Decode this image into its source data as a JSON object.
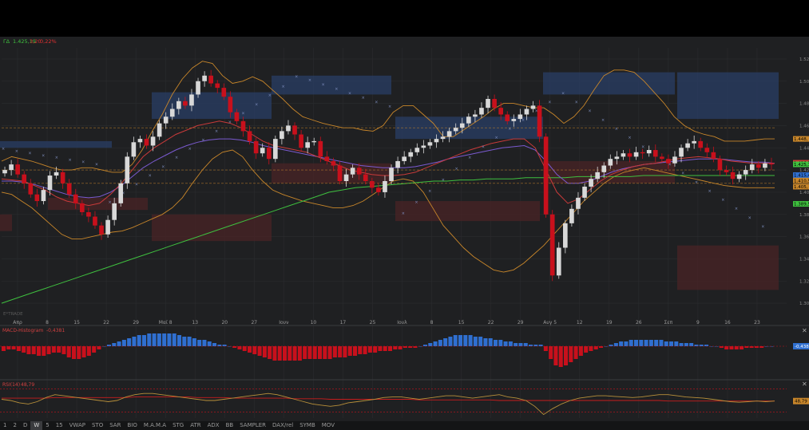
{
  "header": {
    "symbol": "ΓΔ",
    "last": "1.425,19",
    "change": "3,20",
    "change_pct": "0,22%"
  },
  "colors": {
    "background": "#1f2022",
    "up_candle": "#d8d8d8",
    "down_candle": "#c8101c",
    "bollinger": "#c8862a",
    "ema_fast": "#c83a3a",
    "ema_slow": "#7a5ad0",
    "sma_long": "#3fc03f",
    "sar": "#7d8dbd",
    "macd_pos": "#2f6fd0",
    "macd_neg": "#c8101c",
    "rsi": "#b8903a",
    "rsi_signal": "#c81c1c"
  },
  "chart_data": [
    {
      "type": "candlestick",
      "x_tick_labels": [
        "Απρ",
        "8",
        "15",
        "22",
        "29",
        "Μαϊ 8",
        "13",
        "20",
        "27",
        "Ιουν",
        "10",
        "17",
        "25",
        "Ιουλ",
        "8",
        "15",
        "22",
        "29",
        "Αυγ 5",
        "12",
        "19",
        "26",
        "Σεπ",
        "9",
        "16",
        "23"
      ],
      "y_tick_labels": [
        "1.520",
        "1.500",
        "1.480",
        "1.460",
        "1.440",
        "1.420",
        "1.400",
        "1.380",
        "1.360",
        "1.340",
        "1.320",
        "1.300"
      ],
      "ylim": [
        1290,
        1530
      ],
      "price_labels": [
        {
          "text": "1.448,",
          "value": 1448,
          "color": "#c8862a"
        },
        {
          "text": "1.426,5",
          "value": 1426.5,
          "color": "#c83a3a"
        },
        {
          "text": "1.425,1",
          "value": 1425.1,
          "color": "#3fc03f"
        },
        {
          "text": "1.415,4",
          "value": 1415.4,
          "color": "#2f6fd0"
        },
        {
          "text": "1.410,5",
          "value": 1410.5,
          "color": "#c8862a"
        },
        {
          "text": "1.405,",
          "value": 1405,
          "color": "#c8862a"
        },
        {
          "text": "1.389,5",
          "value": 1389.5,
          "color": "#3fc03f"
        }
      ],
      "close": [
        1420,
        1425,
        1416,
        1408,
        1398,
        1392,
        1402,
        1415,
        1418,
        1408,
        1398,
        1390,
        1382,
        1378,
        1370,
        1362,
        1375,
        1390,
        1408,
        1432,
        1445,
        1448,
        1442,
        1450,
        1462,
        1468,
        1475,
        1482,
        1478,
        1488,
        1500,
        1505,
        1498,
        1494,
        1486,
        1472,
        1464,
        1455,
        1446,
        1435,
        1440,
        1430,
        1448,
        1455,
        1460,
        1452,
        1440,
        1445,
        1446,
        1432,
        1428,
        1424,
        1410,
        1416,
        1422,
        1416,
        1410,
        1404,
        1400,
        1410,
        1422,
        1428,
        1432,
        1436,
        1440,
        1442,
        1445,
        1448,
        1450,
        1455,
        1458,
        1462,
        1468,
        1470,
        1476,
        1484,
        1476,
        1470,
        1464,
        1466,
        1470,
        1475,
        1478,
        1450,
        1380,
        1325,
        1350,
        1372,
        1385,
        1395,
        1405,
        1412,
        1418,
        1424,
        1430,
        1432,
        1435,
        1432,
        1436,
        1435,
        1438,
        1432,
        1430,
        1426,
        1432,
        1440,
        1444,
        1446,
        1440,
        1436,
        1430,
        1420,
        1418,
        1412,
        1416,
        1420,
        1425,
        1422,
        1426,
        1425
      ],
      "bollinger_upper": [
        1428,
        1432,
        1430,
        1428,
        1425,
        1422,
        1420,
        1420,
        1422,
        1422,
        1420,
        1418,
        1418,
        1425,
        1438,
        1455,
        1470,
        1488,
        1502,
        1512,
        1518,
        1516,
        1505,
        1498,
        1500,
        1504,
        1500,
        1492,
        1484,
        1475,
        1468,
        1465,
        1462,
        1460,
        1458,
        1458,
        1456,
        1455,
        1460,
        1472,
        1478,
        1478,
        1470,
        1462,
        1450,
        1450,
        1456,
        1462,
        1468,
        1475,
        1480,
        1480,
        1478,
        1476,
        1476,
        1470,
        1462,
        1468,
        1478,
        1492,
        1505,
        1510,
        1510,
        1508,
        1500,
        1490,
        1480,
        1468,
        1460,
        1455,
        1452,
        1450,
        1446,
        1446,
        1446,
        1447,
        1448,
        1448
      ],
      "bollinger_lower": [
        1400,
        1398,
        1392,
        1386,
        1378,
        1370,
        1362,
        1358,
        1358,
        1360,
        1362,
        1364,
        1365,
        1368,
        1372,
        1376,
        1380,
        1386,
        1395,
        1408,
        1420,
        1430,
        1436,
        1438,
        1432,
        1420,
        1410,
        1402,
        1398,
        1395,
        1392,
        1390,
        1388,
        1386,
        1386,
        1388,
        1392,
        1398,
        1404,
        1410,
        1412,
        1410,
        1400,
        1385,
        1370,
        1360,
        1350,
        1342,
        1336,
        1330,
        1328,
        1330,
        1336,
        1344,
        1352,
        1362,
        1372,
        1382,
        1392,
        1400,
        1408,
        1414,
        1418,
        1420,
        1422,
        1420,
        1418,
        1416,
        1414,
        1412,
        1410,
        1408,
        1406,
        1405,
        1404,
        1404,
        1404,
        1404
      ],
      "sma_long": [
        1300,
        1304,
        1308,
        1312,
        1316,
        1320,
        1324,
        1328,
        1332,
        1336,
        1340,
        1344,
        1348,
        1352,
        1356,
        1360,
        1364,
        1368,
        1372,
        1376,
        1380,
        1384,
        1388,
        1392,
        1396,
        1400,
        1402,
        1404,
        1405,
        1406,
        1407,
        1408,
        1409,
        1410,
        1410,
        1411,
        1411,
        1412,
        1412,
        1412,
        1413,
        1413,
        1413,
        1413,
        1414,
        1414,
        1414,
        1414,
        1414,
        1415,
        1415,
        1415,
        1415,
        1415,
        1415,
        1415,
        1415,
        1415,
        1415,
        1415
      ],
      "ema_fast": [
        1412,
        1411,
        1410,
        1406,
        1402,
        1396,
        1392,
        1390,
        1388,
        1390,
        1398,
        1408,
        1420,
        1432,
        1440,
        1446,
        1452,
        1456,
        1460,
        1462,
        1464,
        1462,
        1458,
        1452,
        1446,
        1442,
        1440,
        1438,
        1436,
        1432,
        1428,
        1424,
        1420,
        1418,
        1416,
        1415,
        1415,
        1416,
        1418,
        1422,
        1426,
        1430,
        1434,
        1438,
        1441,
        1444,
        1446,
        1448,
        1448,
        1440,
        1420,
        1400,
        1390,
        1394,
        1402,
        1410,
        1416,
        1420,
        1423,
        1425,
        1426,
        1428,
        1430,
        1431,
        1432,
        1431,
        1430,
        1428,
        1427,
        1426,
        1426,
        1426
      ],
      "ema_slow": [
        1410,
        1410,
        1409,
        1407,
        1404,
        1401,
        1398,
        1396,
        1395,
        1396,
        1400,
        1406,
        1414,
        1422,
        1428,
        1433,
        1438,
        1442,
        1445,
        1447,
        1448,
        1448,
        1447,
        1445,
        1442,
        1440,
        1438,
        1436,
        1434,
        1432,
        1430,
        1428,
        1426,
        1424,
        1423,
        1422,
        1422,
        1422,
        1423,
        1425,
        1427,
        1430,
        1432,
        1434,
        1436,
        1438,
        1440,
        1441,
        1442,
        1438,
        1428,
        1416,
        1408,
        1408,
        1410,
        1414,
        1418,
        1421,
        1423,
        1425,
        1426,
        1427,
        1428,
        1429,
        1430,
        1430,
        1430,
        1429,
        1428,
        1427,
        1427,
        1426
      ],
      "volume_profile_note": ""
    },
    {
      "type": "bar",
      "title": "MACD-Histogram",
      "value_label": "-0,4381",
      "axis_label": "-0,438",
      "values": [
        -3,
        -2,
        -2,
        -3,
        -4,
        -5,
        -5,
        -6,
        -6,
        -5,
        -4,
        -4,
        -5,
        -7,
        -8,
        -8,
        -7,
        -6,
        -4,
        -2,
        0,
        1,
        2,
        3,
        4,
        5,
        6,
        7,
        7,
        8,
        8,
        8,
        8,
        8,
        8,
        7,
        6,
        6,
        5,
        4,
        4,
        3,
        2,
        1,
        1,
        0,
        -1,
        -2,
        -3,
        -4,
        -5,
        -6,
        -7,
        -8,
        -9,
        -9,
        -9,
        -9,
        -9,
        -9,
        -8,
        -8,
        -8,
        -8,
        -8,
        -8,
        -7,
        -7,
        -7,
        -6,
        -6,
        -5,
        -5,
        -4,
        -4,
        -3,
        -3,
        -3,
        -2,
        -2,
        -1,
        -1,
        -1,
        0,
        1,
        2,
        3,
        4,
        5,
        6,
        7,
        7,
        7,
        7,
        6,
        6,
        5,
        5,
        4,
        4,
        3,
        3,
        2,
        2,
        2,
        1,
        1,
        1,
        -3,
        -8,
        -12,
        -13,
        -12,
        -10,
        -8,
        -6,
        -4,
        -3,
        -2,
        -1,
        0,
        1,
        2,
        3,
        3,
        4,
        4,
        4,
        4,
        4,
        4,
        4,
        3,
        3,
        3,
        2,
        2,
        2,
        1,
        1,
        1,
        0,
        0,
        -1,
        -2,
        -2,
        -2,
        -2,
        -1,
        -1,
        -1,
        -1,
        0,
        0
      ]
    },
    {
      "type": "line",
      "title": "RSI(14)",
      "value_label": "48,79",
      "axis_label": "48,79",
      "ylim": [
        20,
        80
      ],
      "values": [
        52,
        50,
        46,
        44,
        48,
        55,
        60,
        58,
        56,
        54,
        52,
        50,
        48,
        50,
        56,
        60,
        62,
        62,
        60,
        58,
        56,
        54,
        52,
        50,
        50,
        52,
        54,
        56,
        58,
        60,
        62,
        60,
        56,
        52,
        48,
        44,
        42,
        40,
        42,
        46,
        48,
        50,
        52,
        55,
        56,
        56,
        54,
        52,
        54,
        56,
        58,
        58,
        56,
        54,
        56,
        58,
        60,
        56,
        54,
        50,
        40,
        26,
        36,
        44,
        50,
        54,
        56,
        58,
        58,
        57,
        56,
        55,
        56,
        58,
        60,
        60,
        58,
        56,
        55,
        54,
        52,
        50,
        48,
        47,
        48,
        49,
        48,
        49
      ],
      "signal": [
        54,
        54,
        54,
        54,
        54,
        54,
        55,
        55,
        55,
        55,
        55,
        55,
        55,
        55,
        55,
        56,
        56,
        56,
        56,
        56,
        56,
        56,
        55,
        55,
        55,
        55,
        54,
        54,
        54,
        54,
        54,
        54,
        54,
        53,
        53,
        53,
        53,
        52,
        52,
        52,
        52,
        52,
        52,
        52,
        52,
        52,
        52,
        51,
        51,
        51,
        51,
        51,
        51,
        51,
        51,
        51,
        50,
        50,
        50,
        50,
        50,
        50,
        50,
        50,
        50,
        50,
        50,
        50,
        50,
        50,
        50,
        50,
        50,
        50,
        50,
        49,
        49,
        49,
        49,
        49,
        49,
        49,
        49,
        49,
        49,
        49,
        49,
        49
      ]
    }
  ],
  "toolbar": {
    "items": [
      "1",
      "2",
      "D",
      "W",
      "5",
      "15",
      "VWAP",
      "STO",
      "SAR",
      "BIO",
      "M.A.M.A",
      "STG",
      "ATR",
      "ADX",
      "BB",
      "SAMPLER",
      "DAX/rel",
      "SYMB",
      "MOV"
    ],
    "selected": "W"
  },
  "watermark": "E*TRADE"
}
